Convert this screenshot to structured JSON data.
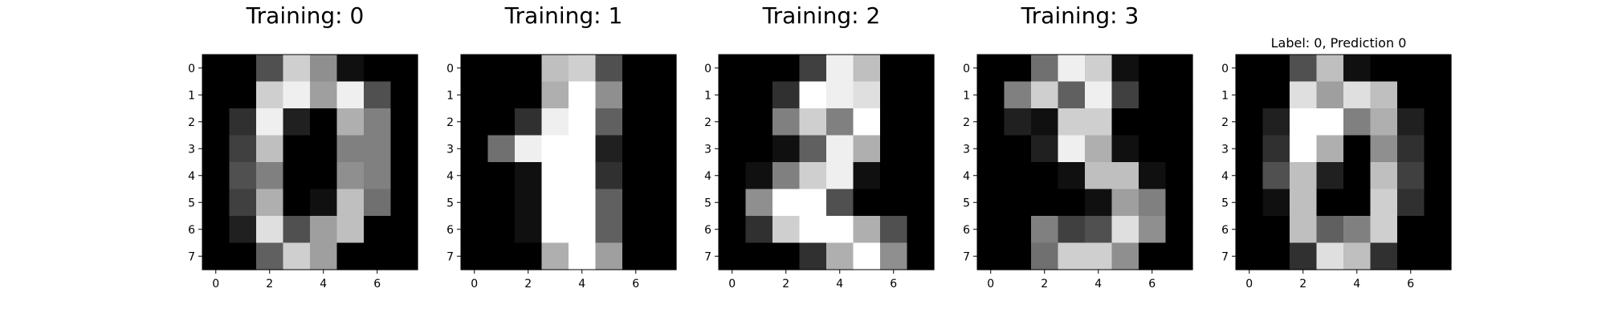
{
  "figure": {
    "titles": [
      "Training: 0",
      "Training: 1",
      "Training: 2",
      "Training: 3",
      "Label: 0, Prediction 0"
    ]
  },
  "chart_data": [
    {
      "type": "heatmap",
      "title": "Training: 0",
      "colormap": "gray_r",
      "value_range": [
        0,
        16
      ],
      "x_tick_labels": [
        "0",
        "2",
        "4",
        "6"
      ],
      "y_tick_labels": [
        "0",
        "1",
        "2",
        "3",
        "4",
        "5",
        "6",
        "7"
      ],
      "values": [
        [
          0,
          0,
          5,
          13,
          9,
          1,
          0,
          0
        ],
        [
          0,
          0,
          13,
          15,
          10,
          15,
          5,
          0
        ],
        [
          0,
          3,
          15,
          2,
          0,
          11,
          8,
          0
        ],
        [
          0,
          4,
          12,
          0,
          0,
          8,
          8,
          0
        ],
        [
          0,
          5,
          8,
          0,
          0,
          9,
          8,
          0
        ],
        [
          0,
          4,
          11,
          0,
          1,
          12,
          7,
          0
        ],
        [
          0,
          2,
          14,
          5,
          10,
          12,
          0,
          0
        ],
        [
          0,
          0,
          6,
          13,
          10,
          0,
          0,
          0
        ]
      ]
    },
    {
      "type": "heatmap",
      "title": "Training: 1",
      "colormap": "gray_r",
      "value_range": [
        0,
        16
      ],
      "x_tick_labels": [
        "0",
        "2",
        "4",
        "6"
      ],
      "y_tick_labels": [
        "0",
        "1",
        "2",
        "3",
        "4",
        "5",
        "6",
        "7"
      ],
      "values": [
        [
          0,
          0,
          0,
          12,
          13,
          5,
          0,
          0
        ],
        [
          0,
          0,
          0,
          11,
          16,
          9,
          0,
          0
        ],
        [
          0,
          0,
          3,
          15,
          16,
          6,
          0,
          0
        ],
        [
          0,
          7,
          15,
          16,
          16,
          2,
          0,
          0
        ],
        [
          0,
          0,
          1,
          16,
          16,
          3,
          0,
          0
        ],
        [
          0,
          0,
          1,
          16,
          16,
          6,
          0,
          0
        ],
        [
          0,
          0,
          1,
          16,
          16,
          6,
          0,
          0
        ],
        [
          0,
          0,
          0,
          11,
          16,
          10,
          0,
          0
        ]
      ]
    },
    {
      "type": "heatmap",
      "title": "Training: 2",
      "colormap": "gray_r",
      "value_range": [
        0,
        16
      ],
      "x_tick_labels": [
        "0",
        "2",
        "4",
        "6"
      ],
      "y_tick_labels": [
        "0",
        "1",
        "2",
        "3",
        "4",
        "5",
        "6",
        "7"
      ],
      "values": [
        [
          0,
          0,
          0,
          4,
          15,
          12,
          0,
          0
        ],
        [
          0,
          0,
          3,
          16,
          15,
          14,
          0,
          0
        ],
        [
          0,
          0,
          8,
          13,
          8,
          16,
          0,
          0
        ],
        [
          0,
          0,
          1,
          6,
          15,
          11,
          0,
          0
        ],
        [
          0,
          1,
          8,
          13,
          15,
          1,
          0,
          0
        ],
        [
          0,
          9,
          16,
          16,
          5,
          0,
          0,
          0
        ],
        [
          0,
          3,
          13,
          16,
          16,
          11,
          5,
          0
        ],
        [
          0,
          0,
          0,
          3,
          11,
          16,
          9,
          0
        ]
      ]
    },
    {
      "type": "heatmap",
      "title": "Training: 3",
      "colormap": "gray_r",
      "value_range": [
        0,
        16
      ],
      "x_tick_labels": [
        "0",
        "2",
        "4",
        "6"
      ],
      "y_tick_labels": [
        "0",
        "1",
        "2",
        "3",
        "4",
        "5",
        "6",
        "7"
      ],
      "values": [
        [
          0,
          0,
          7,
          15,
          13,
          1,
          0,
          0
        ],
        [
          0,
          8,
          13,
          6,
          15,
          4,
          0,
          0
        ],
        [
          0,
          2,
          1,
          13,
          13,
          0,
          0,
          0
        ],
        [
          0,
          0,
          2,
          15,
          11,
          1,
          0,
          0
        ],
        [
          0,
          0,
          0,
          1,
          12,
          12,
          1,
          0
        ],
        [
          0,
          0,
          0,
          0,
          1,
          10,
          8,
          0
        ],
        [
          0,
          0,
          8,
          4,
          5,
          14,
          9,
          0
        ],
        [
          0,
          0,
          7,
          13,
          13,
          9,
          0,
          0
        ]
      ]
    },
    {
      "type": "heatmap",
      "title": "Label: 0, Prediction 0",
      "colormap": "gray_r",
      "value_range": [
        0,
        16
      ],
      "x_tick_labels": [
        "0",
        "2",
        "4",
        "6"
      ],
      "y_tick_labels": [
        "0",
        "1",
        "2",
        "3",
        "4",
        "5",
        "6",
        "7"
      ],
      "values": [
        [
          0,
          0,
          5,
          12,
          1,
          0,
          0,
          0
        ],
        [
          0,
          0,
          14,
          10,
          14,
          12,
          0,
          0
        ],
        [
          0,
          2,
          16,
          16,
          8,
          11,
          2,
          0
        ],
        [
          0,
          3,
          16,
          11,
          0,
          9,
          3,
          0
        ],
        [
          0,
          5,
          12,
          2,
          0,
          12,
          4,
          0
        ],
        [
          0,
          1,
          12,
          0,
          0,
          13,
          3,
          0
        ],
        [
          0,
          0,
          12,
          6,
          8,
          13,
          0,
          0
        ],
        [
          0,
          0,
          3,
          14,
          12,
          3,
          0,
          0
        ]
      ]
    }
  ]
}
